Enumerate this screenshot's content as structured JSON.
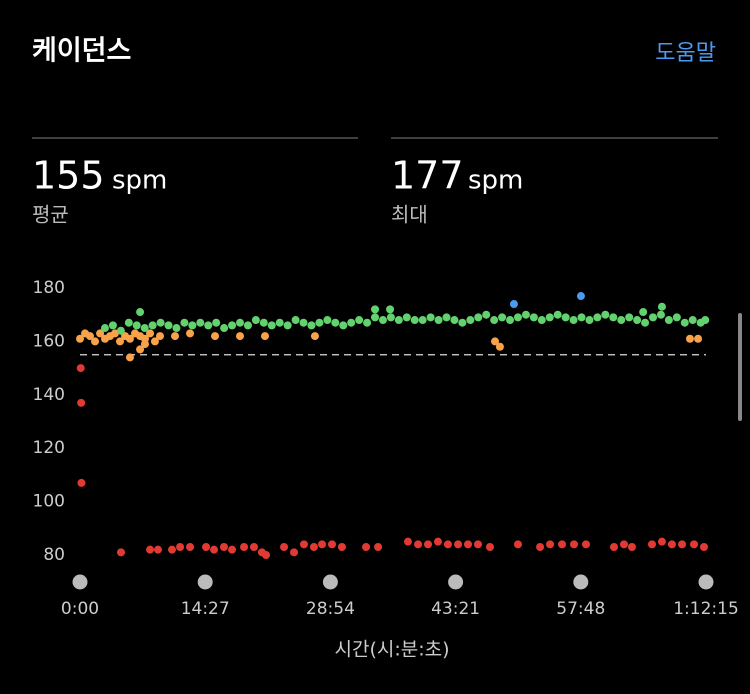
{
  "header": {
    "title": "케이던스",
    "help": "도움말"
  },
  "stats": [
    {
      "value": 155,
      "unit": "spm",
      "label": "평균"
    },
    {
      "value": 177,
      "unit": "spm",
      "label": "최대"
    }
  ],
  "chart_data": {
    "type": "scatter",
    "x_label": "시간(시:분:초)",
    "xlim": [
      0,
      4335
    ],
    "ylim": [
      75,
      183
    ],
    "xticks": [
      {
        "value": 0,
        "label": "0:00"
      },
      {
        "value": 867,
        "label": "14:27"
      },
      {
        "value": 1734,
        "label": "28:54"
      },
      {
        "value": 2601,
        "label": "43:21"
      },
      {
        "value": 3468,
        "label": "57:48"
      },
      {
        "value": 4335,
        "label": "1:12:15"
      }
    ],
    "yticks": [
      80,
      100,
      120,
      140,
      160,
      180
    ],
    "series": [
      {
        "color": "#e03a32",
        "x": [
          5,
          8,
          10,
          284,
          485,
          540,
          637,
          693,
          762,
          873,
          928,
          997,
          1053,
          1136,
          1205,
          1260,
          1288,
          1413,
          1482,
          1551,
          1620,
          1676,
          1745,
          1814,
          1981,
          2064,
          2271,
          2341,
          2410,
          2479,
          2548,
          2618,
          2687,
          2756,
          2839,
          3033,
          3186,
          3255,
          3338,
          3421,
          3504,
          3698,
          3767,
          3822,
          3961,
          4030,
          4099,
          4169,
          4252,
          4321
        ],
        "values": [
          150,
          137,
          107,
          81,
          82,
          82,
          82,
          83,
          83,
          83,
          82,
          83,
          82,
          83,
          83,
          81,
          80,
          83,
          81,
          84,
          83,
          84,
          84,
          83,
          83,
          83,
          85,
          84,
          84,
          85,
          84,
          84,
          84,
          84,
          83,
          84,
          83,
          84,
          84,
          84,
          84,
          83,
          84,
          83,
          84,
          85,
          84,
          84,
          84,
          83
        ]
      },
      {
        "color": "#f9a24a",
        "x": [
          0,
          35,
          69,
          104,
          139,
          173,
          208,
          242,
          277,
          312,
          346,
          381,
          416,
          450,
          485,
          519,
          554,
          346,
          416,
          450,
          658,
          762,
          935,
          1108,
          1281,
          1627,
          2874,
          2908,
          4224,
          4280
        ],
        "values": [
          161,
          163,
          162,
          160,
          163,
          161,
          162,
          163,
          160,
          162,
          161,
          163,
          162,
          161,
          163,
          160,
          162,
          154,
          157,
          159,
          162,
          163,
          162,
          162,
          162,
          162,
          160,
          158,
          161,
          161
        ]
      },
      {
        "color": "#62d26f",
        "x": [
          173,
          228,
          283,
          338,
          393,
          448,
          503,
          558,
          613,
          668,
          723,
          778,
          833,
          888,
          943,
          998,
          1053,
          1108,
          1163,
          1218,
          1273,
          1328,
          1383,
          1438,
          1493,
          1548,
          1603,
          1658,
          1713,
          1768,
          1823,
          1878,
          1933,
          1988,
          2043,
          2098,
          2153,
          2208,
          2263,
          2318,
          2373,
          2428,
          2483,
          2538,
          2593,
          2648,
          2703,
          2758,
          2813,
          2868,
          2923,
          2978,
          3033,
          3088,
          3143,
          3198,
          3253,
          3308,
          3363,
          3418,
          3473,
          3528,
          3583,
          3638,
          3693,
          3748,
          3803,
          3858,
          3913,
          3968,
          4023,
          4078,
          4133,
          4188,
          4243,
          4298,
          4330,
          416,
          2043,
          2147,
          3900,
          4030
        ],
        "values": [
          165,
          166,
          164,
          167,
          166,
          165,
          166,
          167,
          166,
          165,
          167,
          166,
          167,
          166,
          167,
          165,
          166,
          167,
          166,
          168,
          167,
          166,
          167,
          166,
          168,
          167,
          166,
          167,
          168,
          167,
          166,
          167,
          168,
          167,
          169,
          168,
          169,
          168,
          169,
          168,
          168,
          169,
          168,
          169,
          168,
          167,
          168,
          169,
          170,
          168,
          169,
          168,
          169,
          170,
          169,
          168,
          169,
          170,
          169,
          168,
          169,
          168,
          169,
          170,
          169,
          168,
          169,
          168,
          167,
          169,
          170,
          168,
          169,
          167,
          168,
          167,
          168,
          171,
          172,
          172,
          171,
          173
        ]
      },
      {
        "color": "#4a9bf0",
        "x": [
          3005,
          3469
        ],
        "values": [
          174,
          177
        ]
      }
    ]
  }
}
